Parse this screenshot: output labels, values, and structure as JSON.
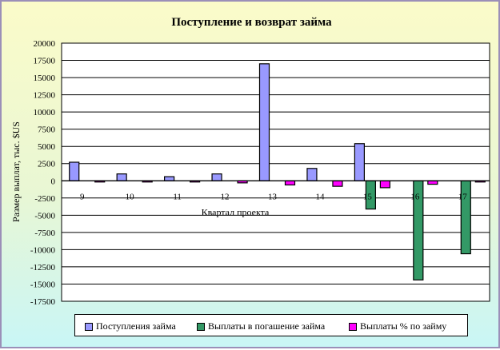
{
  "chart_data": {
    "type": "bar",
    "title": "Поступление и возврат займа",
    "xlabel": "Квартал проекта",
    "ylabel": "Размер выплат, тыс. $US",
    "categories": [
      "9",
      "10",
      "11",
      "12",
      "13",
      "14",
      "15",
      "16",
      "17"
    ],
    "series": [
      {
        "name": "Поступления займа",
        "color": "#9999ff",
        "values": [
          2700,
          1000,
          600,
          1000,
          17000,
          1800,
          5400,
          0,
          0
        ]
      },
      {
        "name": "Выплаты в погашение займа",
        "color": "#339966",
        "values": [
          0,
          0,
          0,
          0,
          0,
          0,
          -4100,
          -14400,
          -10600
        ]
      },
      {
        "name": "Выплаты % по займу",
        "color": "#ff00ff",
        "values": [
          -150,
          -150,
          -150,
          -300,
          -600,
          -800,
          -1000,
          -500,
          -150
        ]
      }
    ],
    "ylim": [
      -17500,
      20000
    ],
    "yticks": [
      20000,
      17500,
      15000,
      12500,
      10000,
      7500,
      5000,
      2500,
      0,
      -2500,
      -5000,
      -7500,
      -10000,
      -12500,
      -15000,
      -17500
    ],
    "grid": true,
    "legend_position": "bottom"
  }
}
